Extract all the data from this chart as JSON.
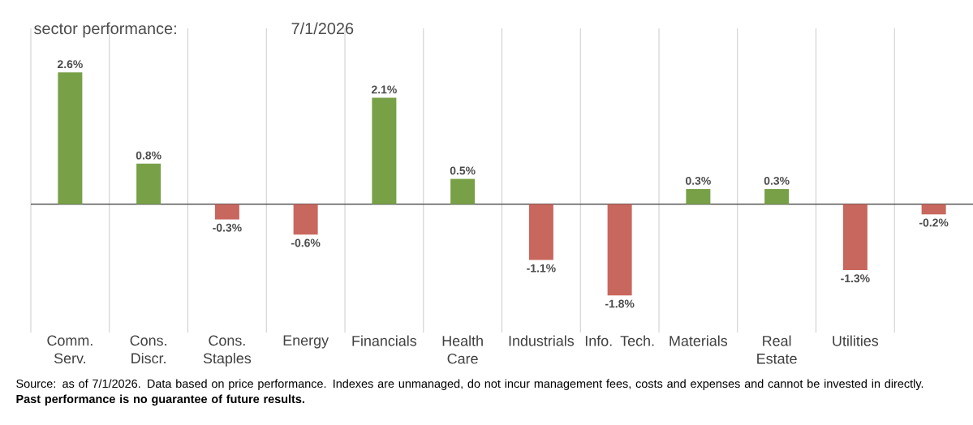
{
  "chart_data": {
    "type": "bar",
    "title": "sector performance:",
    "subtitle": "7/1/2026",
    "categories": [
      "Comm. Serv.",
      "Cons. Discr.",
      "Cons. Staples",
      "Energy",
      "Financials",
      "Health Care",
      "Industrials",
      "Info. Tech.",
      "Materials",
      "Real Estate",
      "Utilities",
      null
    ],
    "values": [
      2.6,
      0.8,
      -0.3,
      -0.6,
      2.1,
      0.5,
      -1.1,
      -1.8,
      0.3,
      0.3,
      -1.3,
      -0.2
    ],
    "value_labels": [
      "2.6%",
      "0.8%",
      "-0.3%",
      "-0.6%",
      "2.1%",
      "0.5%",
      "-1.1%",
      "-1.8%",
      "0.3%",
      "0.3%",
      "-1.3%",
      "-0.2%"
    ],
    "colors": [
      "#78a046",
      "#78a046",
      "#c8675e",
      "#c8675e",
      "#78a046",
      "#78a046",
      "#c8675e",
      "#c8675e",
      "#78a046",
      "#78a046",
      "#c8675e",
      "#c8675e"
    ],
    "grid": "x",
    "annotations": [
      "Source: as of 7/1/2026. Data based on price performance. Indexes are unmanaged, do not incur management fees, costs and expenses and cannot be invested in directly. **Past performance is no guarantee of future results.**"
    ]
  }
}
